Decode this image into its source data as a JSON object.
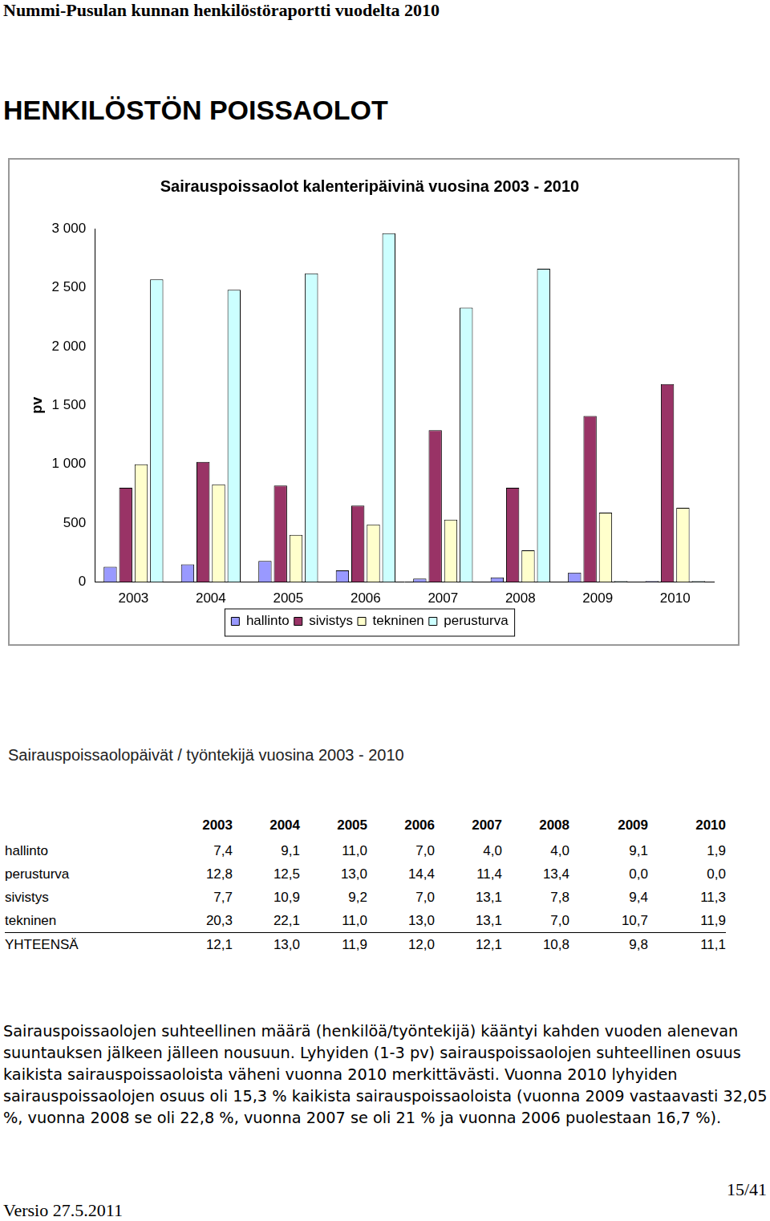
{
  "header": {
    "title": "Nummi-Pusulan kunnan henkilöstöraportti vuodelta 2010"
  },
  "title": "HENKILÖSTÖN POISSAOLOT",
  "chart_data": {
    "type": "bar",
    "title": "Sairauspoissaolot kalenteripäivinä vuosina 2003 - 2010",
    "y_label": "pv",
    "categories": [
      "2003",
      "2004",
      "2005",
      "2006",
      "2007",
      "2008",
      "2009",
      "2010"
    ],
    "series": [
      {
        "name": "hallinto",
        "color": "#9999ff",
        "values": [
          130,
          150,
          180,
          100,
          30,
          40,
          80,
          10
        ]
      },
      {
        "name": "sivistys",
        "color": "#993366",
        "values": [
          800,
          1020,
          820,
          650,
          1290,
          800,
          1410,
          1680
        ]
      },
      {
        "name": "tekninen",
        "color": "#ffffcc",
        "values": [
          1000,
          830,
          400,
          490,
          530,
          270,
          590,
          630
        ]
      },
      {
        "name": "perusturva",
        "color": "#ccffff",
        "values": [
          2570,
          2480,
          2620,
          2960,
          2330,
          2660,
          10,
          10
        ]
      }
    ],
    "ylim": [
      0,
      3000
    ],
    "yticks": [
      0,
      500,
      {
        "value": 1000,
        "label": "1 000"
      },
      {
        "value": 1500,
        "label": "1 500"
      },
      {
        "value": 2000,
        "label": "2 000"
      },
      {
        "value": 2500,
        "label": "2 500"
      },
      {
        "value": 3000,
        "label": "3 000"
      }
    ],
    "grid": false,
    "legend": "bottom"
  },
  "table": {
    "title": "Sairauspoissaolopäivät / työntekijä vuosina 2003 - 2010",
    "columns": [
      "2003",
      "2004",
      "2005",
      "2006",
      "2007",
      "2008",
      "2009",
      "2010"
    ],
    "rows": [
      {
        "label": "hallinto",
        "values": [
          "7,4",
          "9,1",
          "11,0",
          "7,0",
          "4,0",
          "4,0",
          "9,1",
          "1,9"
        ]
      },
      {
        "label": "perusturva",
        "values": [
          "12,8",
          "12,5",
          "13,0",
          "14,4",
          "11,4",
          "13,4",
          "0,0",
          "0,0"
        ]
      },
      {
        "label": "sivistys",
        "values": [
          "7,7",
          "10,9",
          "9,2",
          "7,0",
          "13,1",
          "7,8",
          "9,4",
          "11,3"
        ]
      },
      {
        "label": "tekninen",
        "values": [
          "20,3",
          "22,1",
          "11,0",
          "13,0",
          "13,1",
          "7,0",
          "10,7",
          "11,9"
        ]
      }
    ],
    "total": {
      "label": "YHTEENSÄ",
      "values": [
        "12,1",
        "13,0",
        "11,9",
        "12,0",
        "12,1",
        "10,8",
        "9,8",
        "11,1"
      ]
    }
  },
  "paragraph": "Sairauspoissaolojen suhteellinen määrä (henkilöä/työntekijä) kääntyi kahden vuoden alenevan suuntauksen jälkeen jälleen nousuun. Lyhyiden (1-3 pv) sairauspoissaolojen suhteellinen osuus kaikista sairauspoissaoloista väheni vuonna 2010 merkittävästi. Vuonna 2010 lyhyiden sairauspoissaolojen osuus oli 15,3 % kaikista sairauspoissaoloista (vuonna 2009 vastaavasti 32,05 %, vuonna 2008 se oli 22,8 %, vuonna 2007 se oli 21 % ja vuonna 2006 puolestaan 16,7 %).",
  "footer": {
    "version": "Versio 27.5.2011",
    "page": "15/41"
  }
}
